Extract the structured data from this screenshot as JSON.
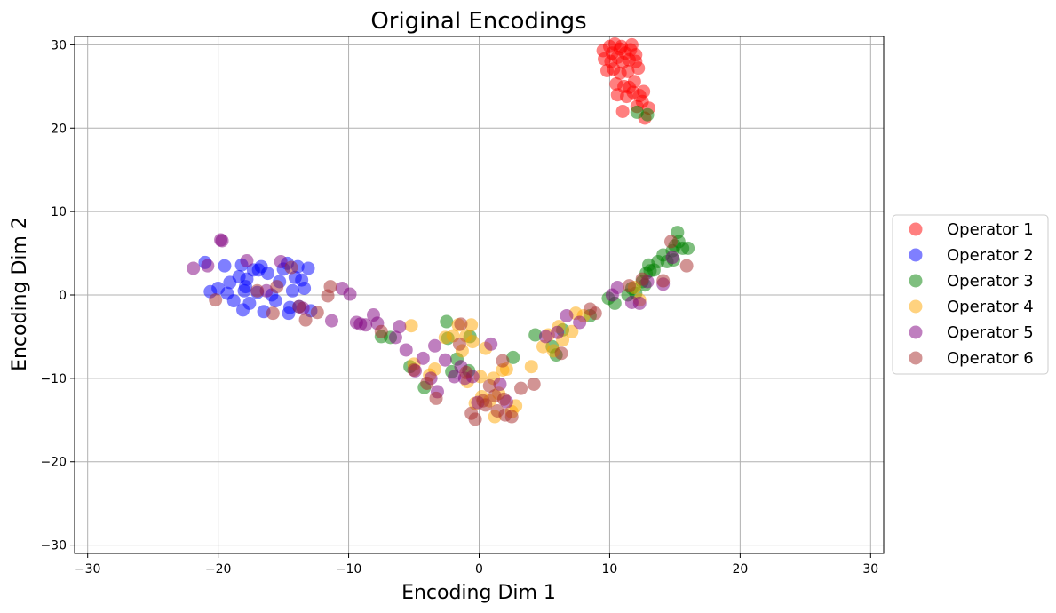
{
  "chart_data": {
    "type": "scatter",
    "title": "Original Encodings",
    "xlabel": "Encoding Dim 1",
    "ylabel": "Encoding Dim 2",
    "xlim": [
      -31,
      31
    ],
    "ylim": [
      -31,
      31
    ],
    "xticks": [
      -30,
      -20,
      -10,
      0,
      10,
      20,
      30
    ],
    "yticks": [
      -30,
      -20,
      -10,
      0,
      10,
      20,
      30
    ],
    "grid": true,
    "legend_position": "right, outside plot, vertically centered",
    "series": [
      {
        "name": "Operator 1",
        "color": "#ff0000",
        "points": [
          [
            9.5,
            29.3
          ],
          [
            10.0,
            29.8
          ],
          [
            10.4,
            30.1
          ],
          [
            10.8,
            29.5
          ],
          [
            11.2,
            29.0
          ],
          [
            11.6,
            29.4
          ],
          [
            12.0,
            28.8
          ],
          [
            9.6,
            28.3
          ],
          [
            10.1,
            28.0
          ],
          [
            10.6,
            28.5
          ],
          [
            11.0,
            27.9
          ],
          [
            11.5,
            28.2
          ],
          [
            12.0,
            28.0
          ],
          [
            10.3,
            27.1
          ],
          [
            9.8,
            26.9
          ],
          [
            10.8,
            26.6
          ],
          [
            11.4,
            26.8
          ],
          [
            12.2,
            27.2
          ],
          [
            10.5,
            25.3
          ],
          [
            11.1,
            25.0
          ],
          [
            11.9,
            25.6
          ],
          [
            10.6,
            24.0
          ],
          [
            11.3,
            23.8
          ],
          [
            11.8,
            24.3
          ],
          [
            12.3,
            23.9
          ],
          [
            12.6,
            24.4
          ],
          [
            11.0,
            22.0
          ],
          [
            12.1,
            22.6
          ],
          [
            12.7,
            21.2
          ],
          [
            13.0,
            22.4
          ],
          [
            10.2,
            29.0
          ],
          [
            11.7,
            30.0
          ],
          [
            12.5,
            23.2
          ],
          [
            11.5,
            24.9
          ],
          [
            10.9,
            29.8
          ]
        ]
      },
      {
        "name": "Operator 2",
        "color": "#0000ff",
        "points": [
          [
            -21.0,
            3.9
          ],
          [
            -20.6,
            0.4
          ],
          [
            -20.0,
            0.8
          ],
          [
            -19.5,
            3.5
          ],
          [
            -19.3,
            0.2
          ],
          [
            -19.1,
            1.5
          ],
          [
            -18.8,
            -0.7
          ],
          [
            -18.4,
            2.2
          ],
          [
            -18.2,
            3.6
          ],
          [
            -18.0,
            0.5
          ],
          [
            -17.8,
            1.9
          ],
          [
            -17.6,
            -1.0
          ],
          [
            -17.3,
            3.0
          ],
          [
            -17.0,
            0.3
          ],
          [
            -16.7,
            3.4
          ],
          [
            -16.5,
            -2.0
          ],
          [
            -16.2,
            2.6
          ],
          [
            -15.9,
            0.0
          ],
          [
            -15.6,
            -0.7
          ],
          [
            -15.3,
            1.6
          ],
          [
            -15.0,
            3.1
          ],
          [
            -14.7,
            3.8
          ],
          [
            -14.6,
            -2.2
          ],
          [
            -14.3,
            0.5
          ],
          [
            -14.1,
            2.1
          ],
          [
            -13.8,
            -1.4
          ],
          [
            -13.6,
            1.8
          ],
          [
            -13.4,
            0.8
          ],
          [
            -13.1,
            3.2
          ],
          [
            -12.9,
            -1.9
          ],
          [
            -18.1,
            -1.8
          ],
          [
            -17.9,
            1.0
          ],
          [
            -16.9,
            3.0
          ],
          [
            -14.5,
            -1.5
          ],
          [
            -13.9,
            3.4
          ]
        ]
      },
      {
        "name": "Operator 3",
        "color": "#008000",
        "points": [
          [
            12.1,
            21.9
          ],
          [
            12.9,
            21.6
          ],
          [
            11.7,
            0.8
          ],
          [
            12.0,
            0.2
          ],
          [
            12.5,
            1.6
          ],
          [
            12.8,
            2.6
          ],
          [
            13.0,
            3.6
          ],
          [
            13.4,
            3.0
          ],
          [
            13.7,
            4.0
          ],
          [
            14.1,
            4.8
          ],
          [
            14.4,
            4.0
          ],
          [
            14.8,
            5.3
          ],
          [
            15.2,
            7.5
          ],
          [
            15.3,
            6.4
          ],
          [
            15.6,
            5.6
          ],
          [
            16.0,
            5.6
          ],
          [
            14.9,
            4.2
          ],
          [
            12.7,
            1.2
          ],
          [
            11.4,
            0.0
          ],
          [
            10.4,
            -1.0
          ],
          [
            9.9,
            -0.4
          ],
          [
            8.5,
            -2.5
          ],
          [
            6.4,
            -4.2
          ],
          [
            5.9,
            -7.2
          ],
          [
            5.6,
            -6.2
          ],
          [
            4.3,
            -4.8
          ],
          [
            2.6,
            -7.5
          ],
          [
            -0.8,
            -9.1
          ],
          [
            -1.7,
            -7.7
          ],
          [
            -2.1,
            -9.2
          ],
          [
            -2.4,
            -5.2
          ],
          [
            -2.5,
            -3.2
          ],
          [
            -4.2,
            -11.1
          ],
          [
            -5.3,
            -8.6
          ],
          [
            -6.8,
            -5.1
          ],
          [
            -7.5,
            -5.0
          ],
          [
            -0.7,
            -5.0
          ],
          [
            13.1,
            2.9
          ],
          [
            15.0,
            5.9
          ]
        ]
      },
      {
        "name": "Operator 4",
        "color": "#ffa500",
        "points": [
          [
            -5.2,
            -3.7
          ],
          [
            -5.0,
            -8.3
          ],
          [
            -3.8,
            -9.6
          ],
          [
            -3.4,
            -8.9
          ],
          [
            -2.6,
            -5.1
          ],
          [
            -2.0,
            -4.9
          ],
          [
            -1.6,
            -3.6
          ],
          [
            -1.3,
            -6.7
          ],
          [
            -1.0,
            -4.9
          ],
          [
            -0.9,
            -10.4
          ],
          [
            -0.6,
            -3.6
          ],
          [
            -0.5,
            -5.6
          ],
          [
            -0.3,
            -13.0
          ],
          [
            0.2,
            -12.2
          ],
          [
            0.5,
            -6.4
          ],
          [
            0.8,
            -12.7
          ],
          [
            1.2,
            -14.6
          ],
          [
            1.5,
            -11.8
          ],
          [
            1.8,
            -9.0
          ],
          [
            2.1,
            -8.9
          ],
          [
            2.5,
            -14.0
          ],
          [
            2.8,
            -13.3
          ],
          [
            4.0,
            -8.6
          ],
          [
            4.9,
            -6.2
          ],
          [
            5.3,
            -4.8
          ],
          [
            5.7,
            -6.7
          ],
          [
            6.1,
            -3.8
          ],
          [
            6.4,
            -5.4
          ],
          [
            7.1,
            -4.4
          ],
          [
            7.4,
            -2.2
          ],
          [
            8.0,
            -2.5
          ],
          [
            11.9,
            0.9
          ],
          [
            12.3,
            -0.6
          ],
          [
            1.1,
            -10.0
          ],
          [
            0.1,
            -9.8
          ]
        ]
      },
      {
        "name": "Operator 5",
        "color": "#800080",
        "points": [
          [
            -21.9,
            3.2
          ],
          [
            -20.8,
            3.5
          ],
          [
            -19.7,
            6.5
          ],
          [
            -17.8,
            4.1
          ],
          [
            -16.3,
            0.5
          ],
          [
            -15.2,
            4.0
          ],
          [
            -13.5,
            -1.6
          ],
          [
            -11.3,
            -3.1
          ],
          [
            -10.5,
            0.8
          ],
          [
            -9.9,
            0.1
          ],
          [
            -9.4,
            -3.3
          ],
          [
            -9.1,
            -3.5
          ],
          [
            -8.7,
            -3.6
          ],
          [
            -8.1,
            -2.4
          ],
          [
            -7.8,
            -3.4
          ],
          [
            -6.4,
            -5.1
          ],
          [
            -6.1,
            -3.8
          ],
          [
            -5.6,
            -6.6
          ],
          [
            -4.9,
            -9.1
          ],
          [
            -4.3,
            -7.6
          ],
          [
            -3.7,
            -10.0
          ],
          [
            -3.2,
            -11.6
          ],
          [
            -3.4,
            -6.1
          ],
          [
            -2.6,
            -7.8
          ],
          [
            -1.9,
            -9.8
          ],
          [
            -1.4,
            -8.6
          ],
          [
            -1.1,
            -10.0
          ],
          [
            -0.1,
            -12.9
          ],
          [
            0.9,
            -5.9
          ],
          [
            1.6,
            -10.7
          ],
          [
            2.1,
            -12.8
          ],
          [
            5.1,
            -5.0
          ],
          [
            6.7,
            -2.5
          ],
          [
            10.2,
            0.0
          ],
          [
            10.6,
            0.9
          ],
          [
            11.7,
            -0.9
          ],
          [
            12.3,
            -1.0
          ],
          [
            12.9,
            1.6
          ],
          [
            14.1,
            1.3
          ],
          [
            14.8,
            4.5
          ],
          [
            6.0,
            -4.5
          ],
          [
            7.7,
            -3.3
          ],
          [
            -19.8,
            6.6
          ],
          [
            -0.5,
            -9.8
          ]
        ]
      },
      {
        "name": "Operator 6",
        "color": "#a52a2a",
        "points": [
          [
            -20.2,
            -0.6
          ],
          [
            -17.0,
            0.5
          ],
          [
            -15.8,
            -2.2
          ],
          [
            -15.5,
            1.0
          ],
          [
            -14.4,
            3.3
          ],
          [
            -13.8,
            -1.4
          ],
          [
            -13.3,
            -3.0
          ],
          [
            -12.4,
            -2.1
          ],
          [
            -11.6,
            -0.1
          ],
          [
            -11.4,
            1.0
          ],
          [
            -7.5,
            -4.4
          ],
          [
            -5.0,
            -9.0
          ],
          [
            -4.0,
            -10.6
          ],
          [
            -3.3,
            -12.4
          ],
          [
            -1.5,
            -5.9
          ],
          [
            -1.4,
            -3.5
          ],
          [
            -1.0,
            -9.3
          ],
          [
            -0.6,
            -14.2
          ],
          [
            -0.3,
            -14.9
          ],
          [
            0.3,
            -12.7
          ],
          [
            0.5,
            -13.2
          ],
          [
            0.8,
            -10.9
          ],
          [
            1.2,
            -12.1
          ],
          [
            1.4,
            -13.9
          ],
          [
            1.8,
            -7.9
          ],
          [
            2.0,
            -14.4
          ],
          [
            2.5,
            -14.6
          ],
          [
            3.2,
            -11.2
          ],
          [
            4.2,
            -10.7
          ],
          [
            6.3,
            -7.0
          ],
          [
            8.5,
            -1.7
          ],
          [
            8.9,
            -2.2
          ],
          [
            11.5,
            1.1
          ],
          [
            12.5,
            1.9
          ],
          [
            14.1,
            1.7
          ],
          [
            14.7,
            6.4
          ],
          [
            15.9,
            3.5
          ],
          [
            1.9,
            -12.5
          ]
        ]
      }
    ]
  }
}
